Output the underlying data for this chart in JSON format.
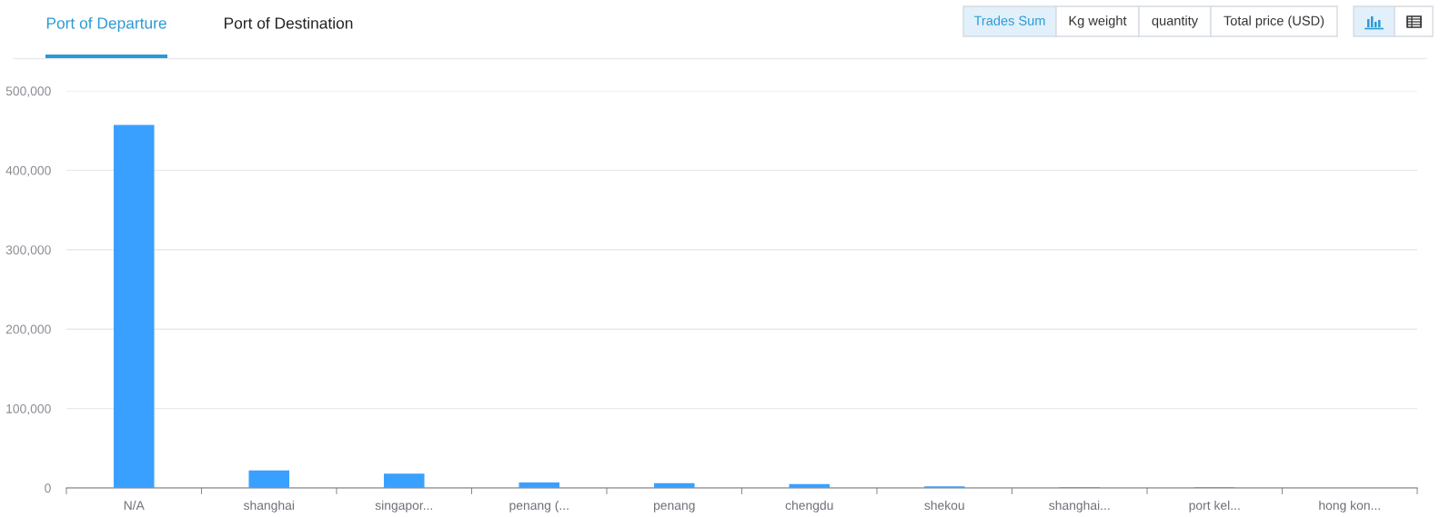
{
  "chart_data": {
    "type": "bar",
    "annotations": [
      "Port of Departure",
      "Port of Destination",
      "Trades Sum",
      "Kg weight",
      "quantity",
      "Total price (USD)"
    ],
    "categories": [
      "N/A",
      "shanghai",
      "singapor...",
      "penang (...",
      "penang",
      "chengdu",
      "shekou",
      "shanghai...",
      "port kel...",
      "hong kon..."
    ],
    "values": [
      457000,
      22000,
      18000,
      7000,
      6000,
      5000,
      2000,
      1000,
      1000,
      0
    ],
    "color": "#3aa0ff",
    "ylim": [
      0,
      500000
    ],
    "yticks": [
      0,
      {
        "value": 100000,
        "label": "100,000"
      },
      {
        "value": 200000,
        "label": "200,000"
      },
      {
        "value": 300000,
        "label": "300,000"
      },
      {
        "value": 400000,
        "label": "400,000"
      },
      {
        "value": 500000,
        "label": "500,000"
      }
    ],
    "grid": "y"
  }
}
